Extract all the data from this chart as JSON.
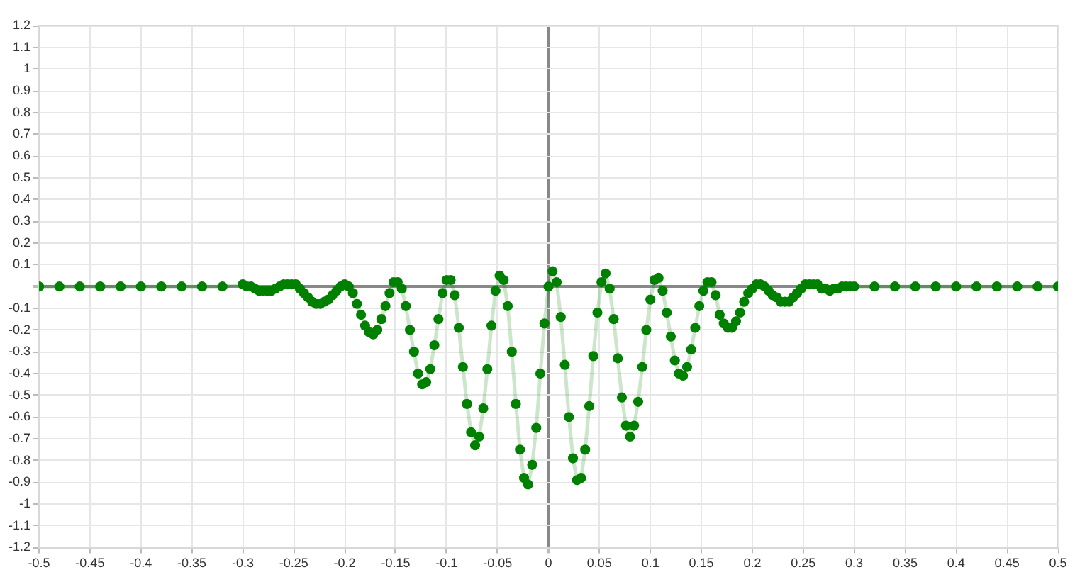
{
  "chart_data": {
    "type": "line",
    "marker": "circle",
    "grid": true,
    "legend": false,
    "xlim": [
      -0.5,
      0.5
    ],
    "xticks": [
      -0.5,
      -0.45,
      -0.4,
      -0.35,
      -0.3,
      -0.25,
      -0.2,
      -0.15,
      -0.1,
      -0.05,
      0,
      0.05,
      0.1,
      0.15,
      0.2,
      0.25,
      0.3,
      0.35,
      0.4,
      0.45,
      0.5
    ],
    "ylim": [
      -1.2,
      1.2
    ],
    "yticks": [
      -1.2,
      -1.1,
      -1,
      -0.9,
      -0.8,
      -0.7,
      -0.6,
      -0.5,
      -0.4,
      -0.3,
      -0.2,
      -0.1,
      {
        "value": 0,
        "label": null
      },
      0.1,
      0.2,
      0.3,
      0.4,
      0.5,
      0.6,
      0.7,
      0.8,
      0.9,
      1,
      1.1,
      1.2
    ],
    "series": [
      {
        "color": "#008000",
        "x": [
          -0.5,
          -0.48,
          -0.46,
          -0.44,
          -0.42,
          -0.4,
          -0.38,
          -0.36,
          -0.34,
          -0.32,
          -0.3,
          -0.296,
          -0.292,
          -0.288,
          -0.284,
          -0.28,
          -0.276,
          -0.272,
          -0.268,
          -0.264,
          -0.26,
          -0.256,
          -0.252,
          -0.248,
          -0.244,
          -0.24,
          -0.236,
          -0.232,
          -0.228,
          -0.224,
          -0.22,
          -0.216,
          -0.212,
          -0.208,
          -0.204,
          -0.2,
          -0.196,
          -0.192,
          -0.188,
          -0.184,
          -0.18,
          -0.176,
          -0.172,
          -0.168,
          -0.164,
          -0.16,
          -0.156,
          -0.152,
          -0.148,
          -0.144,
          -0.14,
          -0.136,
          -0.132,
          -0.128,
          -0.124,
          -0.12,
          -0.116,
          -0.112,
          -0.108,
          -0.104,
          -0.1,
          -0.096,
          -0.092,
          -0.088,
          -0.084,
          -0.08,
          -0.076,
          -0.072,
          -0.068,
          -0.064,
          -0.06,
          -0.056,
          -0.052,
          -0.048,
          -0.044,
          -0.04,
          -0.036,
          -0.032,
          -0.028,
          -0.024,
          -0.02,
          -0.016,
          -0.012,
          -0.008,
          -0.004,
          0,
          0.004,
          0.008,
          0.012,
          0.016,
          0.02,
          0.024,
          0.028,
          0.032,
          0.036,
          0.04,
          0.044,
          0.048,
          0.052,
          0.056,
          0.06,
          0.064,
          0.068,
          0.072,
          0.076,
          0.08,
          0.084,
          0.088,
          0.092,
          0.096,
          0.1,
          0.104,
          0.108,
          0.112,
          0.116,
          0.12,
          0.124,
          0.128,
          0.132,
          0.136,
          0.14,
          0.144,
          0.148,
          0.152,
          0.156,
          0.16,
          0.164,
          0.168,
          0.172,
          0.176,
          0.18,
          0.184,
          0.188,
          0.192,
          0.196,
          0.2,
          0.204,
          0.208,
          0.212,
          0.216,
          0.22,
          0.224,
          0.228,
          0.232,
          0.236,
          0.24,
          0.244,
          0.248,
          0.252,
          0.256,
          0.26,
          0.264,
          0.268,
          0.272,
          0.276,
          0.28,
          0.284,
          0.288,
          0.292,
          0.296,
          0.3,
          0.32,
          0.34,
          0.36,
          0.38,
          0.4,
          0.42,
          0.44,
          0.46,
          0.48,
          0.5
        ],
        "values": [
          0,
          0,
          0,
          0,
          0,
          0,
          0,
          0,
          0,
          0,
          0.01,
          0,
          0,
          -0.01,
          -0.02,
          -0.02,
          -0.02,
          -0.02,
          -0.01,
          0,
          0.01,
          0.01,
          0.01,
          0.01,
          -0.01,
          -0.03,
          -0.05,
          -0.07,
          -0.08,
          -0.08,
          -0.07,
          -0.06,
          -0.04,
          -0.02,
          0,
          0.01,
          0,
          -0.03,
          -0.08,
          -0.13,
          -0.18,
          -0.21,
          -0.22,
          -0.2,
          -0.15,
          -0.09,
          -0.03,
          0.02,
          0.02,
          -0.01,
          -0.09,
          -0.2,
          -0.3,
          -0.4,
          -0.45,
          -0.44,
          -0.38,
          -0.27,
          -0.15,
          -0.03,
          0.03,
          0.03,
          -0.04,
          -0.19,
          -0.37,
          -0.54,
          -0.67,
          -0.73,
          -0.69,
          -0.56,
          -0.38,
          -0.18,
          -0.02,
          0.05,
          0.03,
          -0.09,
          -0.3,
          -0.54,
          -0.75,
          -0.88,
          -0.91,
          -0.82,
          -0.65,
          -0.4,
          -0.17,
          0,
          0.07,
          0.02,
          -0.14,
          -0.36,
          -0.6,
          -0.79,
          -0.89,
          -0.88,
          -0.75,
          -0.55,
          -0.32,
          -0.12,
          0.02,
          0.06,
          -0.01,
          -0.15,
          -0.33,
          -0.51,
          -0.64,
          -0.69,
          -0.64,
          -0.53,
          -0.37,
          -0.2,
          -0.06,
          0.03,
          0.04,
          -0.02,
          -0.12,
          -0.23,
          -0.34,
          -0.4,
          -0.41,
          -0.37,
          -0.29,
          -0.19,
          -0.09,
          -0.02,
          0.02,
          0.02,
          -0.04,
          -0.13,
          -0.17,
          -0.19,
          -0.19,
          -0.16,
          -0.12,
          -0.07,
          -0.03,
          -0.01,
          0.01,
          0.01,
          0,
          -0.02,
          -0.04,
          -0.05,
          -0.07,
          -0.07,
          -0.07,
          -0.05,
          -0.03,
          -0.01,
          0.01,
          0.01,
          0.01,
          0.01,
          -0.01,
          -0.01,
          -0.02,
          -0.01,
          -0.01,
          0,
          0,
          0,
          0,
          0,
          0,
          0,
          0,
          0,
          0,
          0,
          0,
          0,
          0
        ]
      }
    ]
  }
}
